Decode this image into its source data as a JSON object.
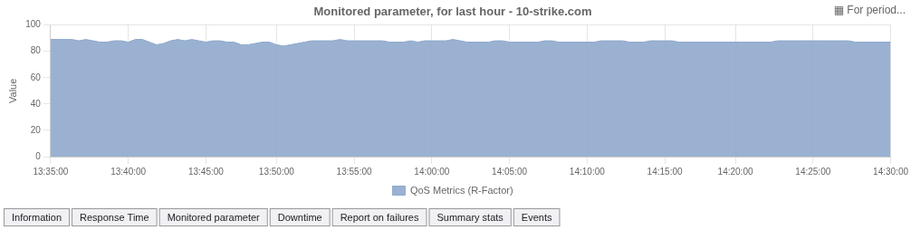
{
  "chart_data": {
    "type": "area",
    "title": "Monitored parameter, for last hour - 10-strike.com",
    "ylabel": "Value",
    "annotations": [
      "▦ For period...",
      "Information",
      "Response Time",
      "Monitored parameter",
      "Downtime",
      "Report on failures",
      "Summary stats",
      "Events"
    ],
    "categories": [
      "13:35:00",
      null,
      null,
      null,
      null,
      null,
      null,
      null,
      null,
      null,
      null,
      "13:40:00",
      null,
      null,
      null,
      null,
      null,
      null,
      null,
      null,
      null,
      null,
      "13:45:00",
      null,
      null,
      null,
      null,
      null,
      null,
      null,
      null,
      null,
      "13:50:00",
      null,
      null,
      null,
      null,
      null,
      null,
      null,
      null,
      null,
      null,
      "13:55:00",
      null,
      null,
      null,
      null,
      null,
      null,
      null,
      null,
      null,
      null,
      "14:00:00",
      null,
      null,
      null,
      null,
      null,
      null,
      null,
      null,
      null,
      null,
      "14:05:00",
      null,
      null,
      null,
      null,
      null,
      null,
      null,
      null,
      null,
      null,
      "14:10:00",
      null,
      null,
      null,
      null,
      null,
      null,
      null,
      null,
      null,
      null,
      "14:15:00",
      null,
      null,
      null,
      null,
      null,
      null,
      null,
      null,
      null,
      "14:20:00",
      null,
      null,
      null,
      null,
      null,
      null,
      null,
      null,
      null,
      null,
      "14:25:00",
      null,
      null,
      null,
      null,
      null,
      null,
      null,
      null,
      null,
      null,
      "14:30:00"
    ],
    "series": [
      {
        "name": "QoS Metrics (R-Factor)",
        "color": "#8fa8cc",
        "values": [
          89,
          89,
          89,
          89,
          88,
          89,
          88,
          87,
          87,
          88,
          88,
          87,
          89,
          89,
          87,
          85,
          86,
          88,
          89,
          88,
          89,
          88,
          87,
          88,
          88,
          87,
          87,
          85,
          85,
          86,
          87,
          87,
          85,
          84,
          85,
          86,
          87,
          88,
          88,
          88,
          88,
          89,
          88,
          88,
          88,
          88,
          88,
          88,
          87,
          87,
          87,
          88,
          87,
          88,
          88,
          88,
          88,
          89,
          88,
          87,
          87,
          87,
          87,
          88,
          88,
          87,
          87,
          87,
          87,
          87,
          88,
          88,
          87,
          87,
          87,
          87,
          87,
          87,
          88,
          88,
          88,
          88,
          87,
          87,
          87,
          88,
          88,
          88,
          88,
          87,
          87,
          87,
          87,
          87,
          87,
          87,
          87,
          87,
          87,
          87,
          87,
          87,
          87,
          88,
          88,
          88,
          88,
          88,
          88,
          88,
          88,
          88,
          88,
          88,
          87,
          87,
          87,
          87,
          87,
          87
        ]
      }
    ],
    "ylim": [
      0,
      100
    ],
    "yticks": [
      0,
      20,
      40,
      60,
      80,
      100
    ],
    "grid": true,
    "legend": "bottom"
  }
}
